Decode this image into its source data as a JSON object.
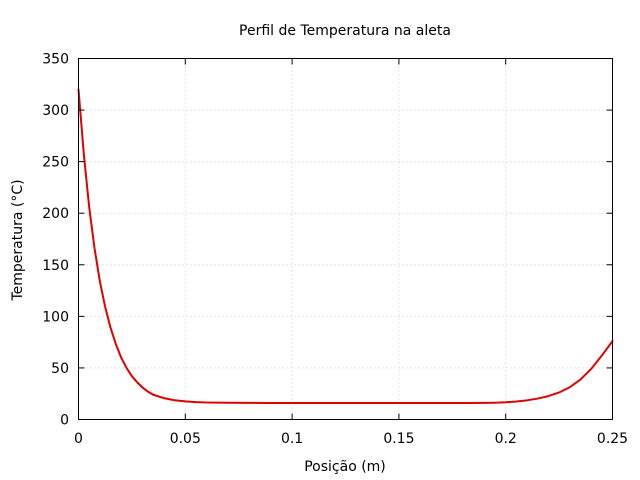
{
  "chart_data": {
    "type": "line",
    "title": "Perfil de Temperatura na aleta",
    "xlabel": "Posição (m)",
    "ylabel": "Temperatura (°C)",
    "xlim": [
      0,
      0.25
    ],
    "ylim": [
      0,
      350
    ],
    "x_ticks": [
      0,
      0.05,
      0.1,
      0.15,
      0.2,
      0.25
    ],
    "x_tick_labels": [
      "0",
      "0.05",
      "0.1",
      "0.15",
      "0.2",
      "0.25"
    ],
    "y_ticks": [
      0,
      50,
      100,
      150,
      200,
      250,
      300,
      350
    ],
    "y_tick_labels": [
      "0",
      "50",
      "100",
      "150",
      "200",
      "250",
      "300",
      "350"
    ],
    "grid": true,
    "legend": "none",
    "series": [
      {
        "color": "#e00000",
        "x": [
          0,
          0.0025,
          0.005,
          0.0075,
          0.01,
          0.0125,
          0.015,
          0.0175,
          0.02,
          0.0225,
          0.025,
          0.0275,
          0.03,
          0.0325,
          0.035,
          0.04,
          0.045,
          0.05,
          0.055,
          0.06,
          0.07,
          0.08,
          0.09,
          0.1,
          0.11,
          0.12,
          0.13,
          0.14,
          0.15,
          0.16,
          0.17,
          0.18,
          0.19,
          0.195,
          0.2,
          0.205,
          0.21,
          0.215,
          0.22,
          0.225,
          0.23,
          0.235,
          0.24,
          0.245,
          0.25
        ],
        "y": [
          320,
          257,
          206,
          166,
          134,
          109,
          89,
          73,
          60,
          50,
          42,
          36,
          31,
          27,
          24,
          20.7,
          18.7,
          17.6,
          16.9,
          16.5,
          16.2,
          16.1,
          16,
          16,
          16,
          16,
          16,
          16,
          16,
          16,
          16,
          16,
          16.1,
          16.3,
          16.7,
          17.4,
          18.6,
          20.3,
          22.7,
          26.2,
          31.3,
          38.7,
          49,
          62,
          76
        ]
      }
    ]
  }
}
